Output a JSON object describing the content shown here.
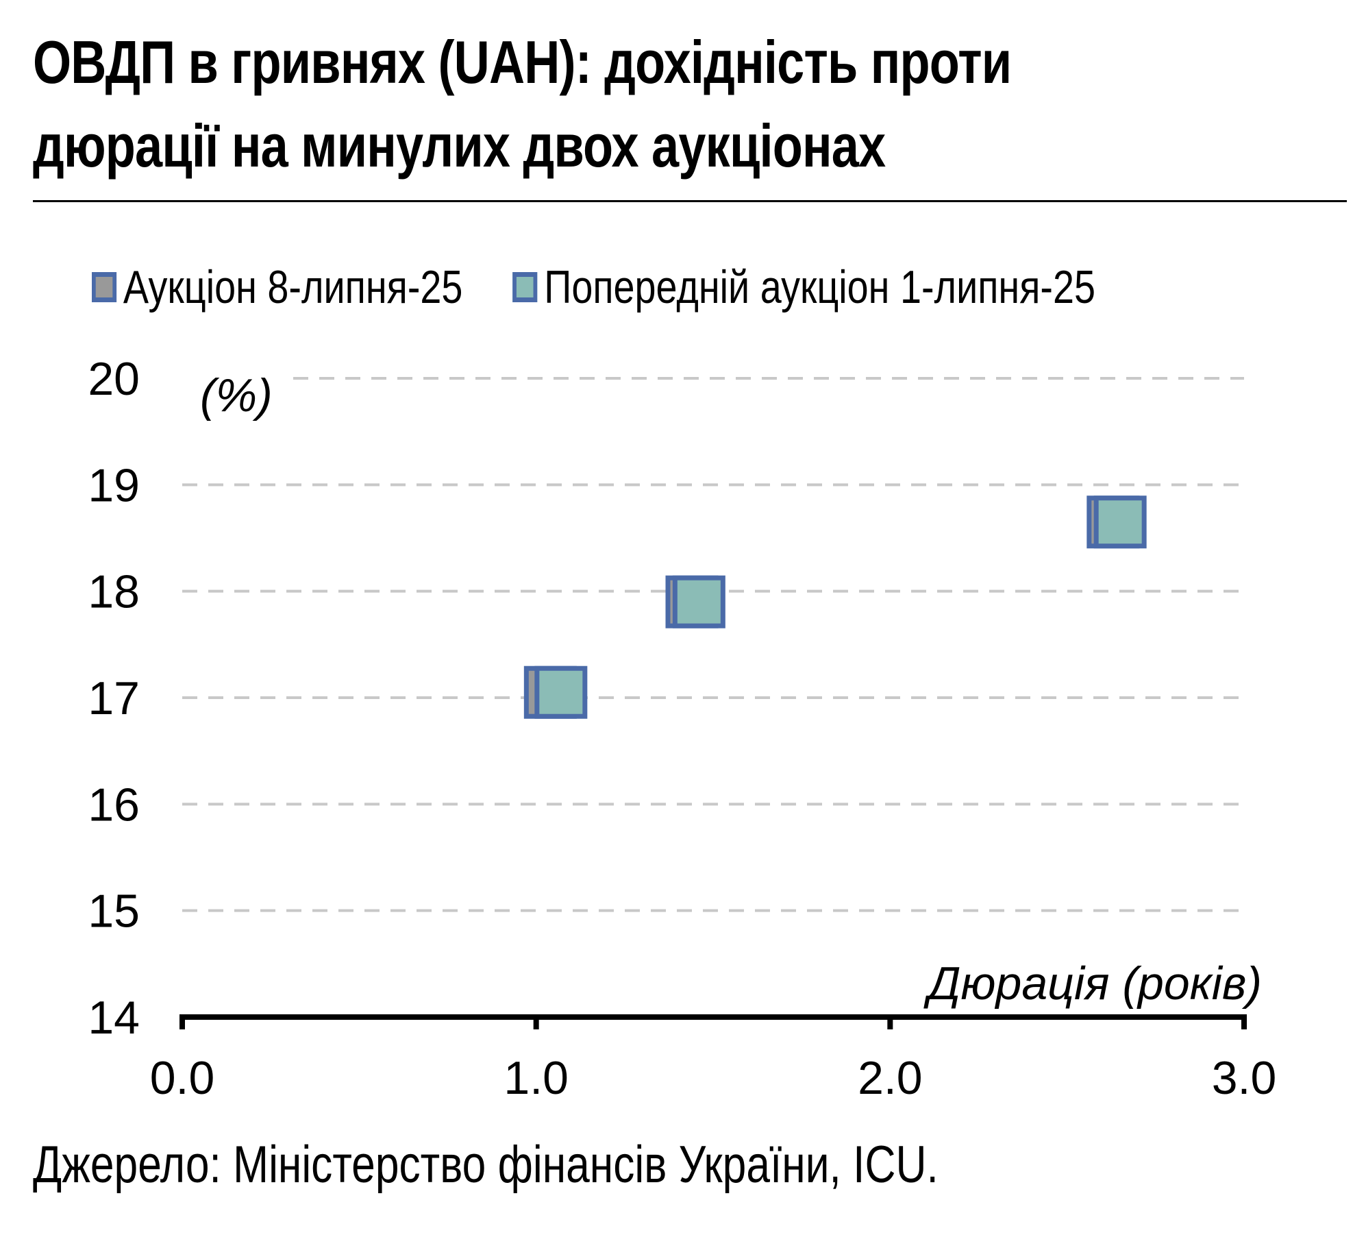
{
  "title_lines": [
    "ОВДП в гривнях (UAH): дохідність проти",
    "дюрації на минулих двох аукціонах"
  ],
  "source": "Джерело: Міністерство фінансів України, ICU.",
  "colors": {
    "current_fill": "#999999",
    "previous_fill": "#8bbcb6",
    "marker_border": "#4a6aa8",
    "grid": "#c8c8c8",
    "axis": "#000000"
  },
  "chart_data": {
    "type": "scatter",
    "title": "ОВДП в гривнях (UAH): дохідність проти дюрації на минулих двох аукціонах",
    "xlabel": "Дюрація (років)",
    "ylabel": "(%)",
    "xlim": [
      0,
      3
    ],
    "ylim": [
      14,
      20
    ],
    "x_ticks": [
      "0.0",
      "1.0",
      "2.0",
      "3.0"
    ],
    "y_ticks": [
      "14",
      "15",
      "16",
      "17",
      "18",
      "19",
      "20"
    ],
    "grid": "horizontal dashed",
    "legend_position": "top",
    "series": [
      {
        "name": "Аукціон 8-липня-25",
        "marker": "square",
        "points": [
          {
            "x": 1.04,
            "y": 17.05
          },
          {
            "x": 1.44,
            "y": 17.9
          },
          {
            "x": 2.63,
            "y": 18.65
          }
        ]
      },
      {
        "name": "Попередній аукціон 1-липня-25",
        "marker": "square",
        "points": [
          {
            "x": 1.07,
            "y": 17.05
          },
          {
            "x": 1.46,
            "y": 17.9
          },
          {
            "x": 2.65,
            "y": 18.65
          }
        ]
      }
    ]
  }
}
